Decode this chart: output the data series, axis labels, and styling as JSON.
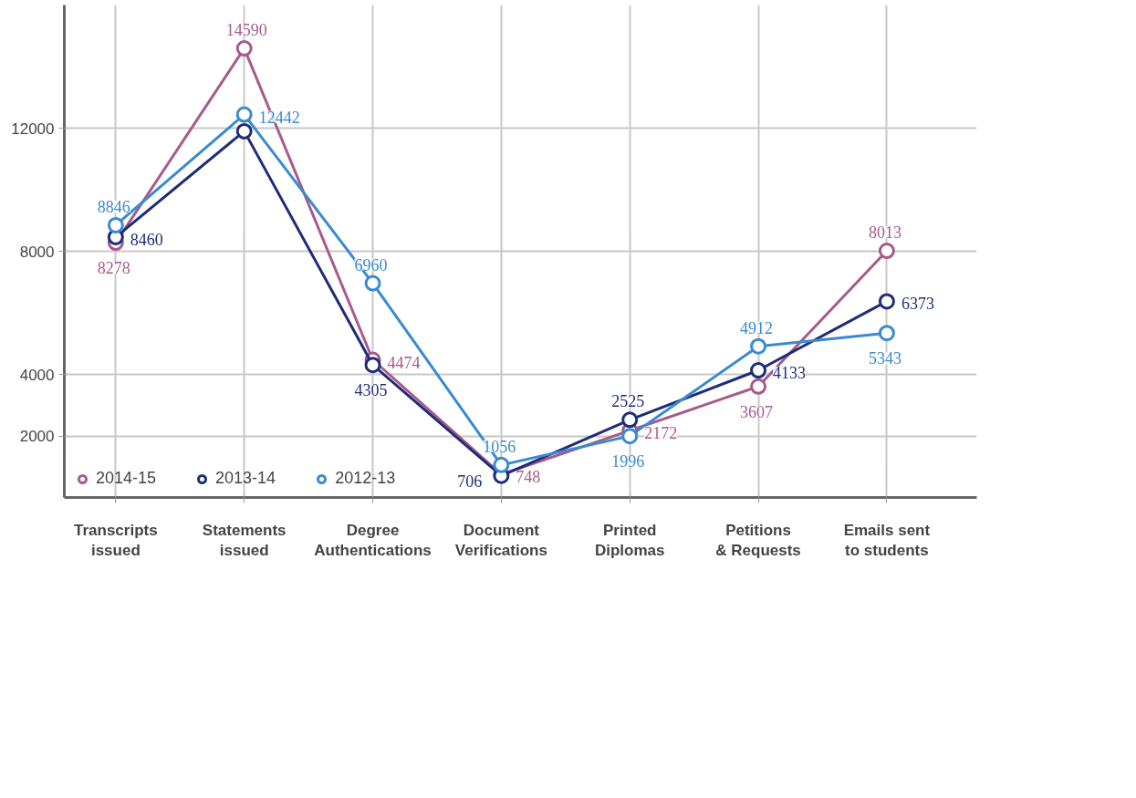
{
  "chart_data": {
    "type": "line",
    "categories": [
      "Transcripts issued",
      "Statements issued",
      "Degree Authentications",
      "Document Verifications",
      "Printed Diplomas",
      "Petitions & Requests",
      "Emails sent to students"
    ],
    "series": [
      {
        "name": "2014-15",
        "color": "#a85a8a",
        "values": [
          8278,
          14590,
          4474,
          748,
          2172,
          3607,
          8013
        ],
        "value_labels": [
          "8278",
          "14590",
          "4474",
          "748",
          "2172",
          "3607",
          "8013"
        ]
      },
      {
        "name": "2013-14",
        "color": "#1f2d78",
        "values": [
          8460,
          11900,
          4305,
          706,
          2525,
          4133,
          6373
        ],
        "value_labels": [
          "8460",
          null,
          "4305",
          "706",
          "2525",
          "4133",
          "6373"
        ]
      },
      {
        "name": "2012-13",
        "color": "#3a8ad0",
        "values": [
          8846,
          12442,
          6960,
          1056,
          1996,
          4912,
          5343
        ],
        "value_labels": [
          "8846",
          "12442",
          "6960",
          "1056",
          "1996",
          "4912",
          "5343"
        ]
      }
    ],
    "ylim": [
      0,
      16000
    ],
    "yticks": [
      2000,
      4000,
      8000,
      12000
    ],
    "grid": true,
    "legend": "bottom left",
    "marker": "circle",
    "line_style": "solid"
  }
}
